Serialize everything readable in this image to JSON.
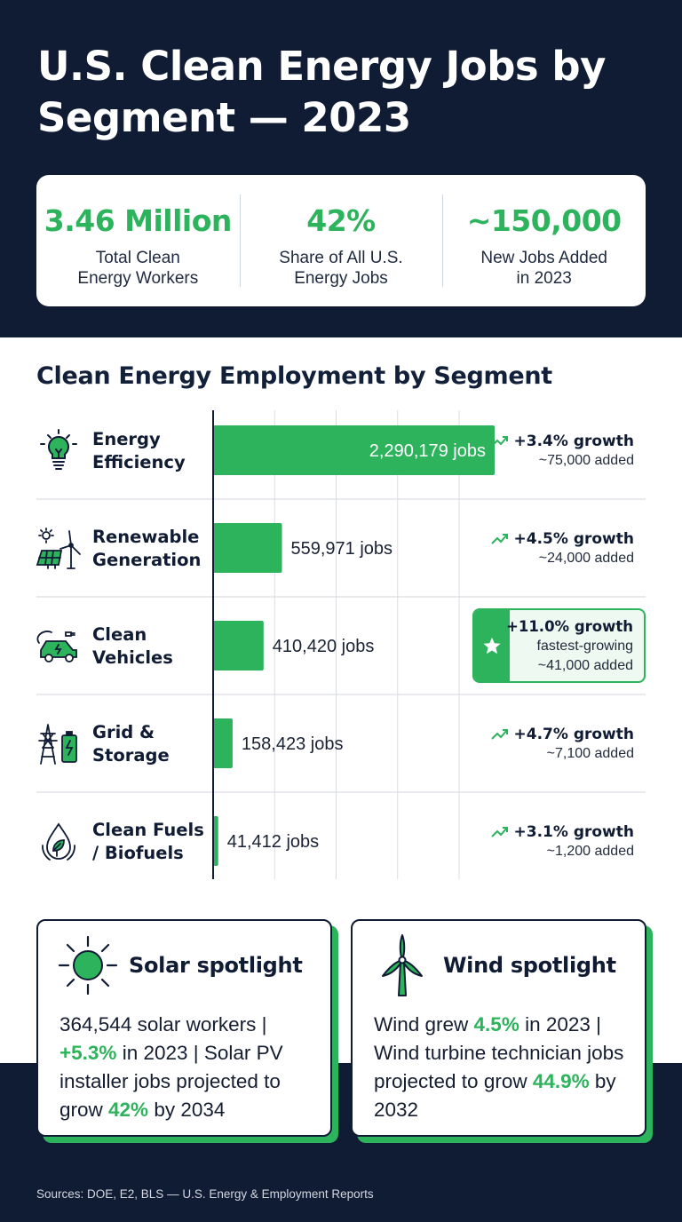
{
  "title": "U.S. Clean Energy Jobs by Segment — 2023",
  "kpis": [
    {
      "value": "3.46 Million",
      "label": "Total Clean\nEnergy Workers"
    },
    {
      "value": "42%",
      "label": "Share of All U.S.\nEnergy Jobs"
    },
    {
      "value": "~150,000",
      "label": "New Jobs Added\nin 2023"
    }
  ],
  "colors": {
    "navy": "#101b34",
    "green": "#2cb35c",
    "white": "#ffffff"
  },
  "chart_data": {
    "type": "bar",
    "orientation": "horizontal",
    "title": "Clean Energy Employment by Segment",
    "categories": [
      "Energy Efficiency",
      "Renewable Generation",
      "Clean Vehicles",
      "Grid & Storage",
      "Clean Fuels / Biofuels"
    ],
    "category_labels": [
      "Energy\nEfficiency",
      "Renewable\nGeneration",
      "Clean\nVehicles",
      "Grid &\nStorage",
      "Clean Fuels\n/ Biofuels"
    ],
    "values": [
      2290179,
      559971,
      410420,
      158423,
      41412
    ],
    "value_labels": [
      "2,290,179 jobs",
      "559,971 jobs",
      "410,420 jobs",
      "158,423 jobs",
      "41,412 jobs"
    ],
    "growth": [
      "+3.4% growth",
      "+4.5% growth",
      "+11.0% growth",
      "+4.7% growth",
      "+3.1% growth"
    ],
    "added": [
      "~75,000 added",
      "~24,000 added",
      "~41,000 added",
      "~7,100 added",
      "~1,200 added"
    ],
    "highlight": {
      "index": 2,
      "note": "fastest-growing"
    },
    "icons": [
      "lightbulb-icon",
      "solar-wind-icon",
      "electric-car-icon",
      "grid-battery-icon",
      "biofuel-drop-icon"
    ],
    "xlim": [
      0,
      2290179
    ],
    "grid": true
  },
  "spotlights": {
    "solar": {
      "title": "Solar spotlight",
      "icon": "sun-icon",
      "parts": [
        {
          "text": "364,544 solar workers | ",
          "hl": false
        },
        {
          "text": "+5.3%",
          "hl": true
        },
        {
          "text": " in 2023 | Solar PV installer jobs projected to grow ",
          "hl": false
        },
        {
          "text": "42%",
          "hl": true
        },
        {
          "text": " by 2034",
          "hl": false
        }
      ]
    },
    "wind": {
      "title": "Wind spotlight",
      "icon": "wind-turbine-icon",
      "parts": [
        {
          "text": "Wind grew ",
          "hl": false
        },
        {
          "text": "4.5%",
          "hl": true
        },
        {
          "text": " in 2023 | Wind turbine technician jobs projected to grow ",
          "hl": false
        },
        {
          "text": "44.9%",
          "hl": true
        },
        {
          "text": " by 2032",
          "hl": false
        }
      ]
    }
  },
  "sources": "Sources: DOE, E2, BLS — U.S. Energy & Employment Reports"
}
